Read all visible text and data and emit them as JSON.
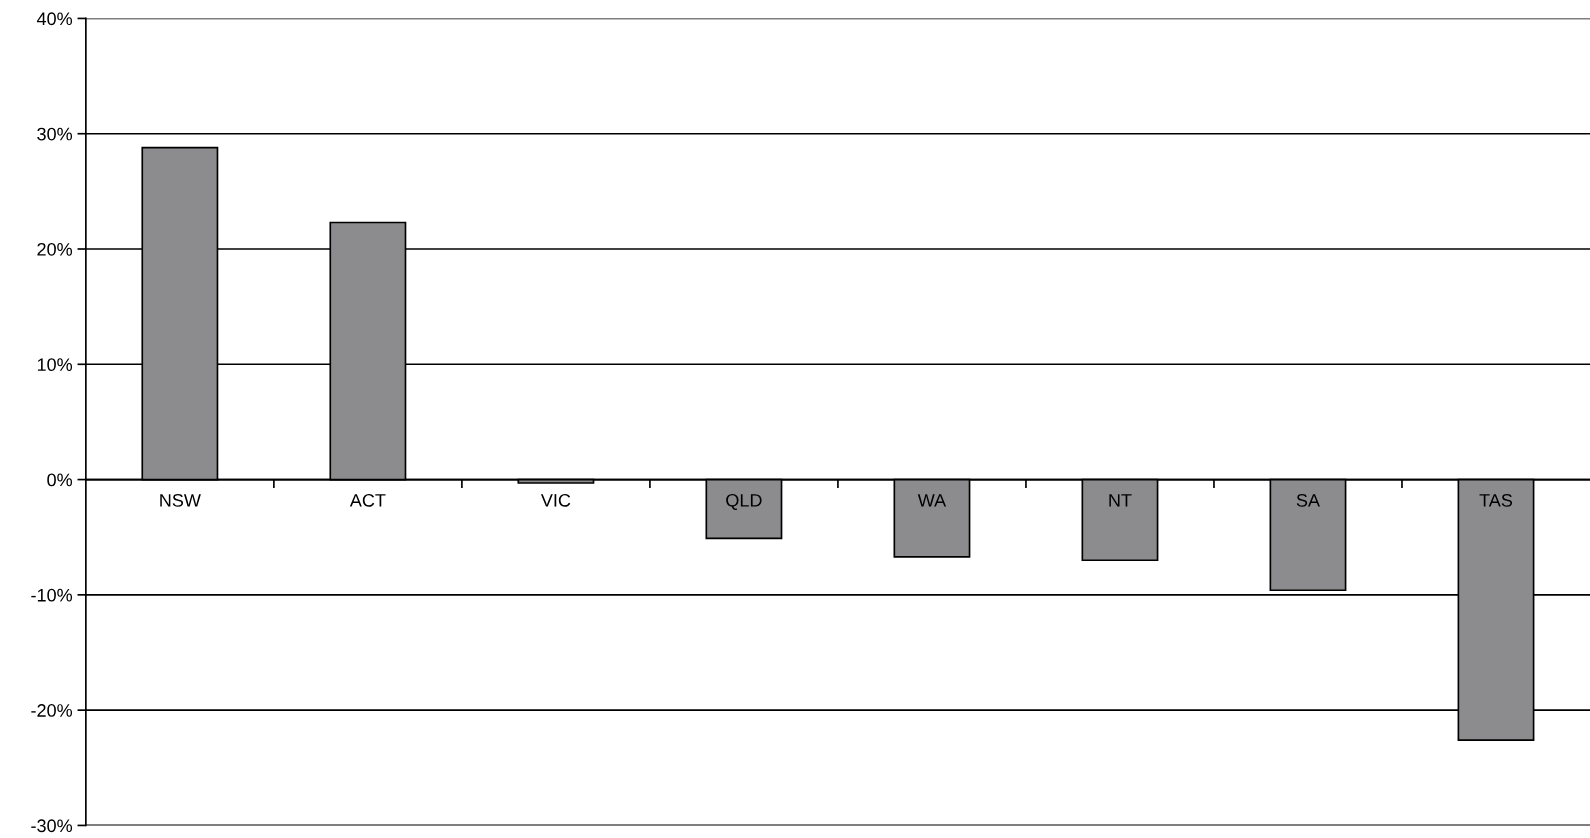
{
  "chart_data": {
    "type": "bar",
    "categories": [
      "NSW",
      "ACT",
      "VIC",
      "QLD",
      "WA",
      "NT",
      "SA",
      "TAS"
    ],
    "values": [
      28.8,
      22.3,
      -0.3,
      -5.1,
      -6.7,
      -7.0,
      -9.6,
      -22.6
    ],
    "color": "#8c8c8e",
    "ylim": [
      -30,
      40
    ],
    "yticks": [
      {
        "value": -30,
        "label": "-30%"
      },
      {
        "value": -20,
        "label": "-20%"
      },
      {
        "value": -10,
        "label": "-10%"
      },
      {
        "value": 0,
        "label": "0%"
      },
      {
        "value": 10,
        "label": "10%"
      },
      {
        "value": 20,
        "label": "20%"
      },
      {
        "value": 30,
        "label": "30%"
      },
      {
        "value": 40,
        "label": "40%"
      }
    ],
    "grid": "y",
    "legend": false
  }
}
